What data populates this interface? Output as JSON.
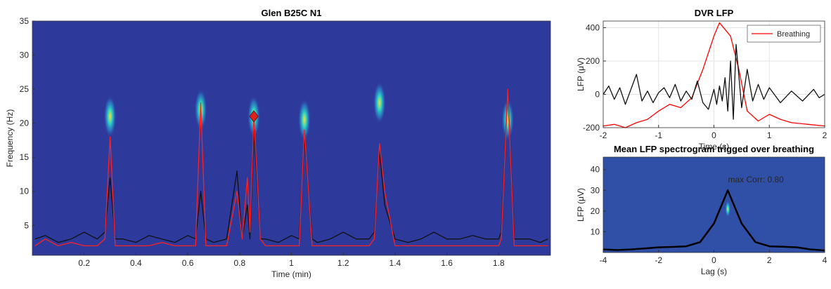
{
  "chart_data": [
    {
      "type": "line",
      "title": "Glen B25C N1",
      "xlabel": "Time (min)",
      "ylabel": "Frequency (Hz)",
      "xlim": [
        0,
        2
      ],
      "xticks": [
        0.2,
        0.4,
        0.6,
        0.8,
        1,
        1.2,
        1.4,
        1.6,
        1.8
      ],
      "ylim": [
        0.6,
        35
      ],
      "yticks": [
        5,
        10,
        15,
        20,
        25,
        30,
        35
      ],
      "background": "#2d3a9c",
      "x": [
        0.01,
        0.05,
        0.1,
        0.15,
        0.2,
        0.25,
        0.28,
        0.3,
        0.32,
        0.35,
        0.4,
        0.45,
        0.5,
        0.55,
        0.6,
        0.63,
        0.65,
        0.67,
        0.7,
        0.75,
        0.79,
        0.81,
        0.83,
        0.84,
        0.855,
        0.88,
        0.9,
        0.95,
        1.0,
        1.03,
        1.05,
        1.08,
        1.1,
        1.15,
        1.2,
        1.25,
        1.3,
        1.32,
        1.34,
        1.36,
        1.4,
        1.45,
        1.5,
        1.55,
        1.6,
        1.65,
        1.7,
        1.75,
        1.8,
        1.81,
        1.835,
        1.86,
        1.92,
        1.96,
        1.99
      ],
      "series": [
        {
          "color": "#111111",
          "values": [
            3,
            3.5,
            2.5,
            3,
            4,
            3,
            4,
            12,
            3,
            3,
            2.5,
            3.5,
            3,
            2.5,
            3.5,
            3,
            10,
            3,
            2.5,
            3,
            13,
            3,
            8,
            3,
            19,
            3,
            3,
            2.5,
            3.5,
            3,
            18,
            3,
            2.5,
            3,
            4,
            3,
            3,
            4,
            16,
            8,
            3,
            2.5,
            3,
            4,
            3,
            3,
            3.5,
            3,
            3,
            4,
            25,
            3,
            3,
            2.5,
            3
          ]
        },
        {
          "color": "#ff2020",
          "values": [
            2,
            3,
            2,
            2.5,
            2,
            2,
            3,
            18,
            2,
            2,
            2,
            2,
            2.5,
            2,
            2,
            2,
            23,
            2,
            2,
            2,
            10,
            3,
            12,
            4,
            21,
            3,
            2,
            2,
            2,
            2,
            19,
            2,
            2,
            2,
            2,
            2,
            2,
            3,
            17,
            10,
            2,
            2,
            2,
            2,
            2,
            2,
            2,
            2,
            2,
            3,
            25,
            2,
            2,
            2,
            2
          ]
        }
      ],
      "spots": {
        "x": [
          0.3,
          0.65,
          0.855,
          1.05,
          1.34,
          1.835
        ],
        "y": [
          21,
          22,
          21,
          20.5,
          23,
          20.5
        ]
      },
      "markers": {
        "x": [
          0.855
        ],
        "y": [
          21
        ],
        "color": "#e0201b"
      }
    },
    {
      "type": "line",
      "title": "DVR LFP",
      "xlabel": "Time (s)",
      "ylabel": "LFP (μV)",
      "xlim": [
        -2,
        2
      ],
      "xticks": [
        -2,
        -1,
        0,
        1,
        2
      ],
      "ylim": [
        -200,
        440
      ],
      "yticks": [
        -200,
        0,
        200,
        400
      ],
      "grid": true,
      "legend": "upper right",
      "series": [
        {
          "name": "Breathing",
          "color": "#ff0000",
          "x": [
            -2,
            -1.8,
            -1.6,
            -1.4,
            -1.2,
            -1,
            -0.8,
            -0.6,
            -0.4,
            -0.2,
            0,
            0.1,
            0.3,
            0.45,
            0.6,
            0.8,
            1,
            1.2,
            1.4,
            1.7,
            2
          ],
          "values": [
            -190,
            -180,
            -200,
            -170,
            -150,
            -100,
            -60,
            -80,
            -20,
            150,
            350,
            430,
            350,
            150,
            -100,
            -160,
            -120,
            -150,
            -170,
            -180,
            -190
          ]
        },
        {
          "color": "#111111",
          "x": [
            -2,
            -1.9,
            -1.8,
            -1.7,
            -1.6,
            -1.5,
            -1.4,
            -1.3,
            -1.2,
            -1.1,
            -1,
            -0.9,
            -0.8,
            -0.7,
            -0.6,
            -0.5,
            -0.4,
            -0.3,
            -0.2,
            -0.1,
            0,
            0.05,
            0.1,
            0.15,
            0.2,
            0.25,
            0.3,
            0.35,
            0.4,
            0.5,
            0.6,
            0.7,
            0.8,
            0.9,
            1,
            1.2,
            1.4,
            1.6,
            1.8,
            1.9,
            2
          ],
          "values": [
            0,
            50,
            -30,
            40,
            -60,
            30,
            120,
            -40,
            20,
            -50,
            10,
            40,
            -20,
            60,
            -40,
            20,
            -30,
            80,
            -50,
            -90,
            30,
            -60,
            50,
            -40,
            100,
            -100,
            200,
            -150,
            300,
            -80,
            150,
            -40,
            60,
            -30,
            40,
            -50,
            20,
            -40,
            30,
            -20,
            0
          ]
        }
      ]
    },
    {
      "type": "line",
      "title": "Mean LFP spectrogram trigged over breathing",
      "xlabel": "Lag (s)",
      "ylabel": "LFP (μV)",
      "xlim": [
        -4,
        4
      ],
      "xticks": [
        -4,
        -2,
        0,
        2,
        4
      ],
      "ylim": [
        0,
        46
      ],
      "yticks": [
        10,
        20,
        30,
        40
      ],
      "background": "#3050a8",
      "annotation": "max Corr: 0.80",
      "x": [
        -4,
        -3.5,
        -3,
        -2.5,
        -2,
        -1.5,
        -1,
        -0.5,
        0,
        0.5,
        1,
        1.5,
        2,
        2.5,
        3,
        3.5,
        4
      ],
      "series": [
        {
          "color": "#000000",
          "values": [
            1.5,
            1.2,
            1.5,
            2,
            2.5,
            2.7,
            3,
            5,
            14,
            30,
            14,
            5,
            3,
            2.8,
            2.5,
            1.5,
            1
          ]
        }
      ],
      "spots": {
        "x": [
          0.5
        ],
        "y": [
          21
        ]
      }
    }
  ]
}
